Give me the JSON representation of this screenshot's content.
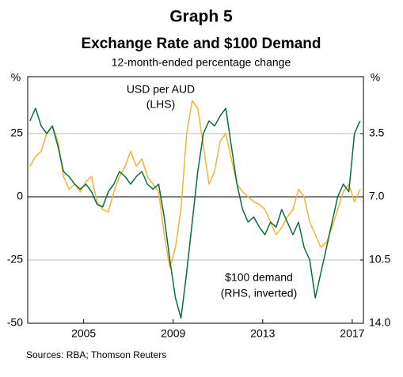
{
  "chart_data": {
    "type": "line",
    "title": "Graph 5",
    "subtitle": "Exchange Rate and $100 Demand",
    "caption": "12-month-ended percentage change",
    "source": "Sources: RBA; Thomson Reuters",
    "y_label": "%",
    "y2_label": "%",
    "annotations": [
      "USD per AUD",
      "(LHS)",
      "$100 demand",
      "(RHS, inverted)"
    ],
    "xlim": [
      2002.5,
      2017.5
    ],
    "xticks": [
      2005,
      2009,
      2013,
      2017
    ],
    "ylim": [
      -50,
      47.5
    ],
    "yticks": [
      -50,
      -25,
      0,
      25
    ],
    "y2lim": [
      14.0,
      0.35
    ],
    "y2ticks": [
      3.5,
      {
        "value": 7,
        "label": "7.0"
      },
      10.5,
      {
        "value": 14,
        "label": "14.0"
      }
    ],
    "grid": true,
    "x": [
      2002.6,
      2002.85,
      2003.1,
      2003.35,
      2003.6,
      2003.85,
      2004.1,
      2004.35,
      2004.6,
      2004.85,
      2005.1,
      2005.35,
      2005.6,
      2005.85,
      2006.1,
      2006.35,
      2006.6,
      2006.85,
      2007.1,
      2007.35,
      2007.6,
      2007.85,
      2008.1,
      2008.35,
      2008.6,
      2008.85,
      2009.1,
      2009.35,
      2009.6,
      2009.85,
      2010.1,
      2010.35,
      2010.6,
      2010.85,
      2011.1,
      2011.35,
      2011.6,
      2011.85,
      2012.1,
      2012.35,
      2012.6,
      2012.85,
      2013.1,
      2013.35,
      2013.6,
      2013.85,
      2014.1,
      2014.35,
      2014.6,
      2014.85,
      2015.1,
      2015.35,
      2015.6,
      2015.85,
      2016.1,
      2016.35,
      2016.6,
      2016.85,
      2017.1,
      2017.35
    ],
    "series": [
      {
        "name": "USD per AUD",
        "color": "#f5b335",
        "values": [
          12,
          16,
          18,
          25,
          28,
          22,
          8,
          3,
          5,
          2,
          6,
          8,
          -2,
          -5,
          -6,
          2,
          8,
          12,
          18,
          12,
          15,
          8,
          5,
          2,
          -15,
          -28,
          -20,
          -5,
          25,
          38,
          35,
          20,
          5,
          10,
          22,
          25,
          15,
          5,
          2,
          0,
          -2,
          -3,
          -5,
          -10,
          -15,
          -12,
          -8,
          -5,
          3,
          0,
          -10,
          -15,
          -20,
          -18,
          -12,
          -5,
          2,
          5,
          -2,
          3
        ]
      },
      {
        "name": "$100 demand",
        "color": "#0b6e3a",
        "axis": "y2",
        "values": [
          2.8,
          2.1,
          3.08,
          3.5,
          3.08,
          4.2,
          5.6,
          5.88,
          6.3,
          6.58,
          6.3,
          6.72,
          7.42,
          7.56,
          6.72,
          6.3,
          5.6,
          5.88,
          6.3,
          5.88,
          5.6,
          6.3,
          6.58,
          6.3,
          8.12,
          10.5,
          12.6,
          13.72,
          11.2,
          8.4,
          5.6,
          3.5,
          2.8,
          3.08,
          2.52,
          2.1,
          4.2,
          6.3,
          7.7,
          8.4,
          8.12,
          8.68,
          9.1,
          8.4,
          8.68,
          7.7,
          8.4,
          9.1,
          8.4,
          9.8,
          10.5,
          12.6,
          11.2,
          9.8,
          8.4,
          7.0,
          6.3,
          6.72,
          3.5,
          2.8
        ]
      }
    ]
  }
}
